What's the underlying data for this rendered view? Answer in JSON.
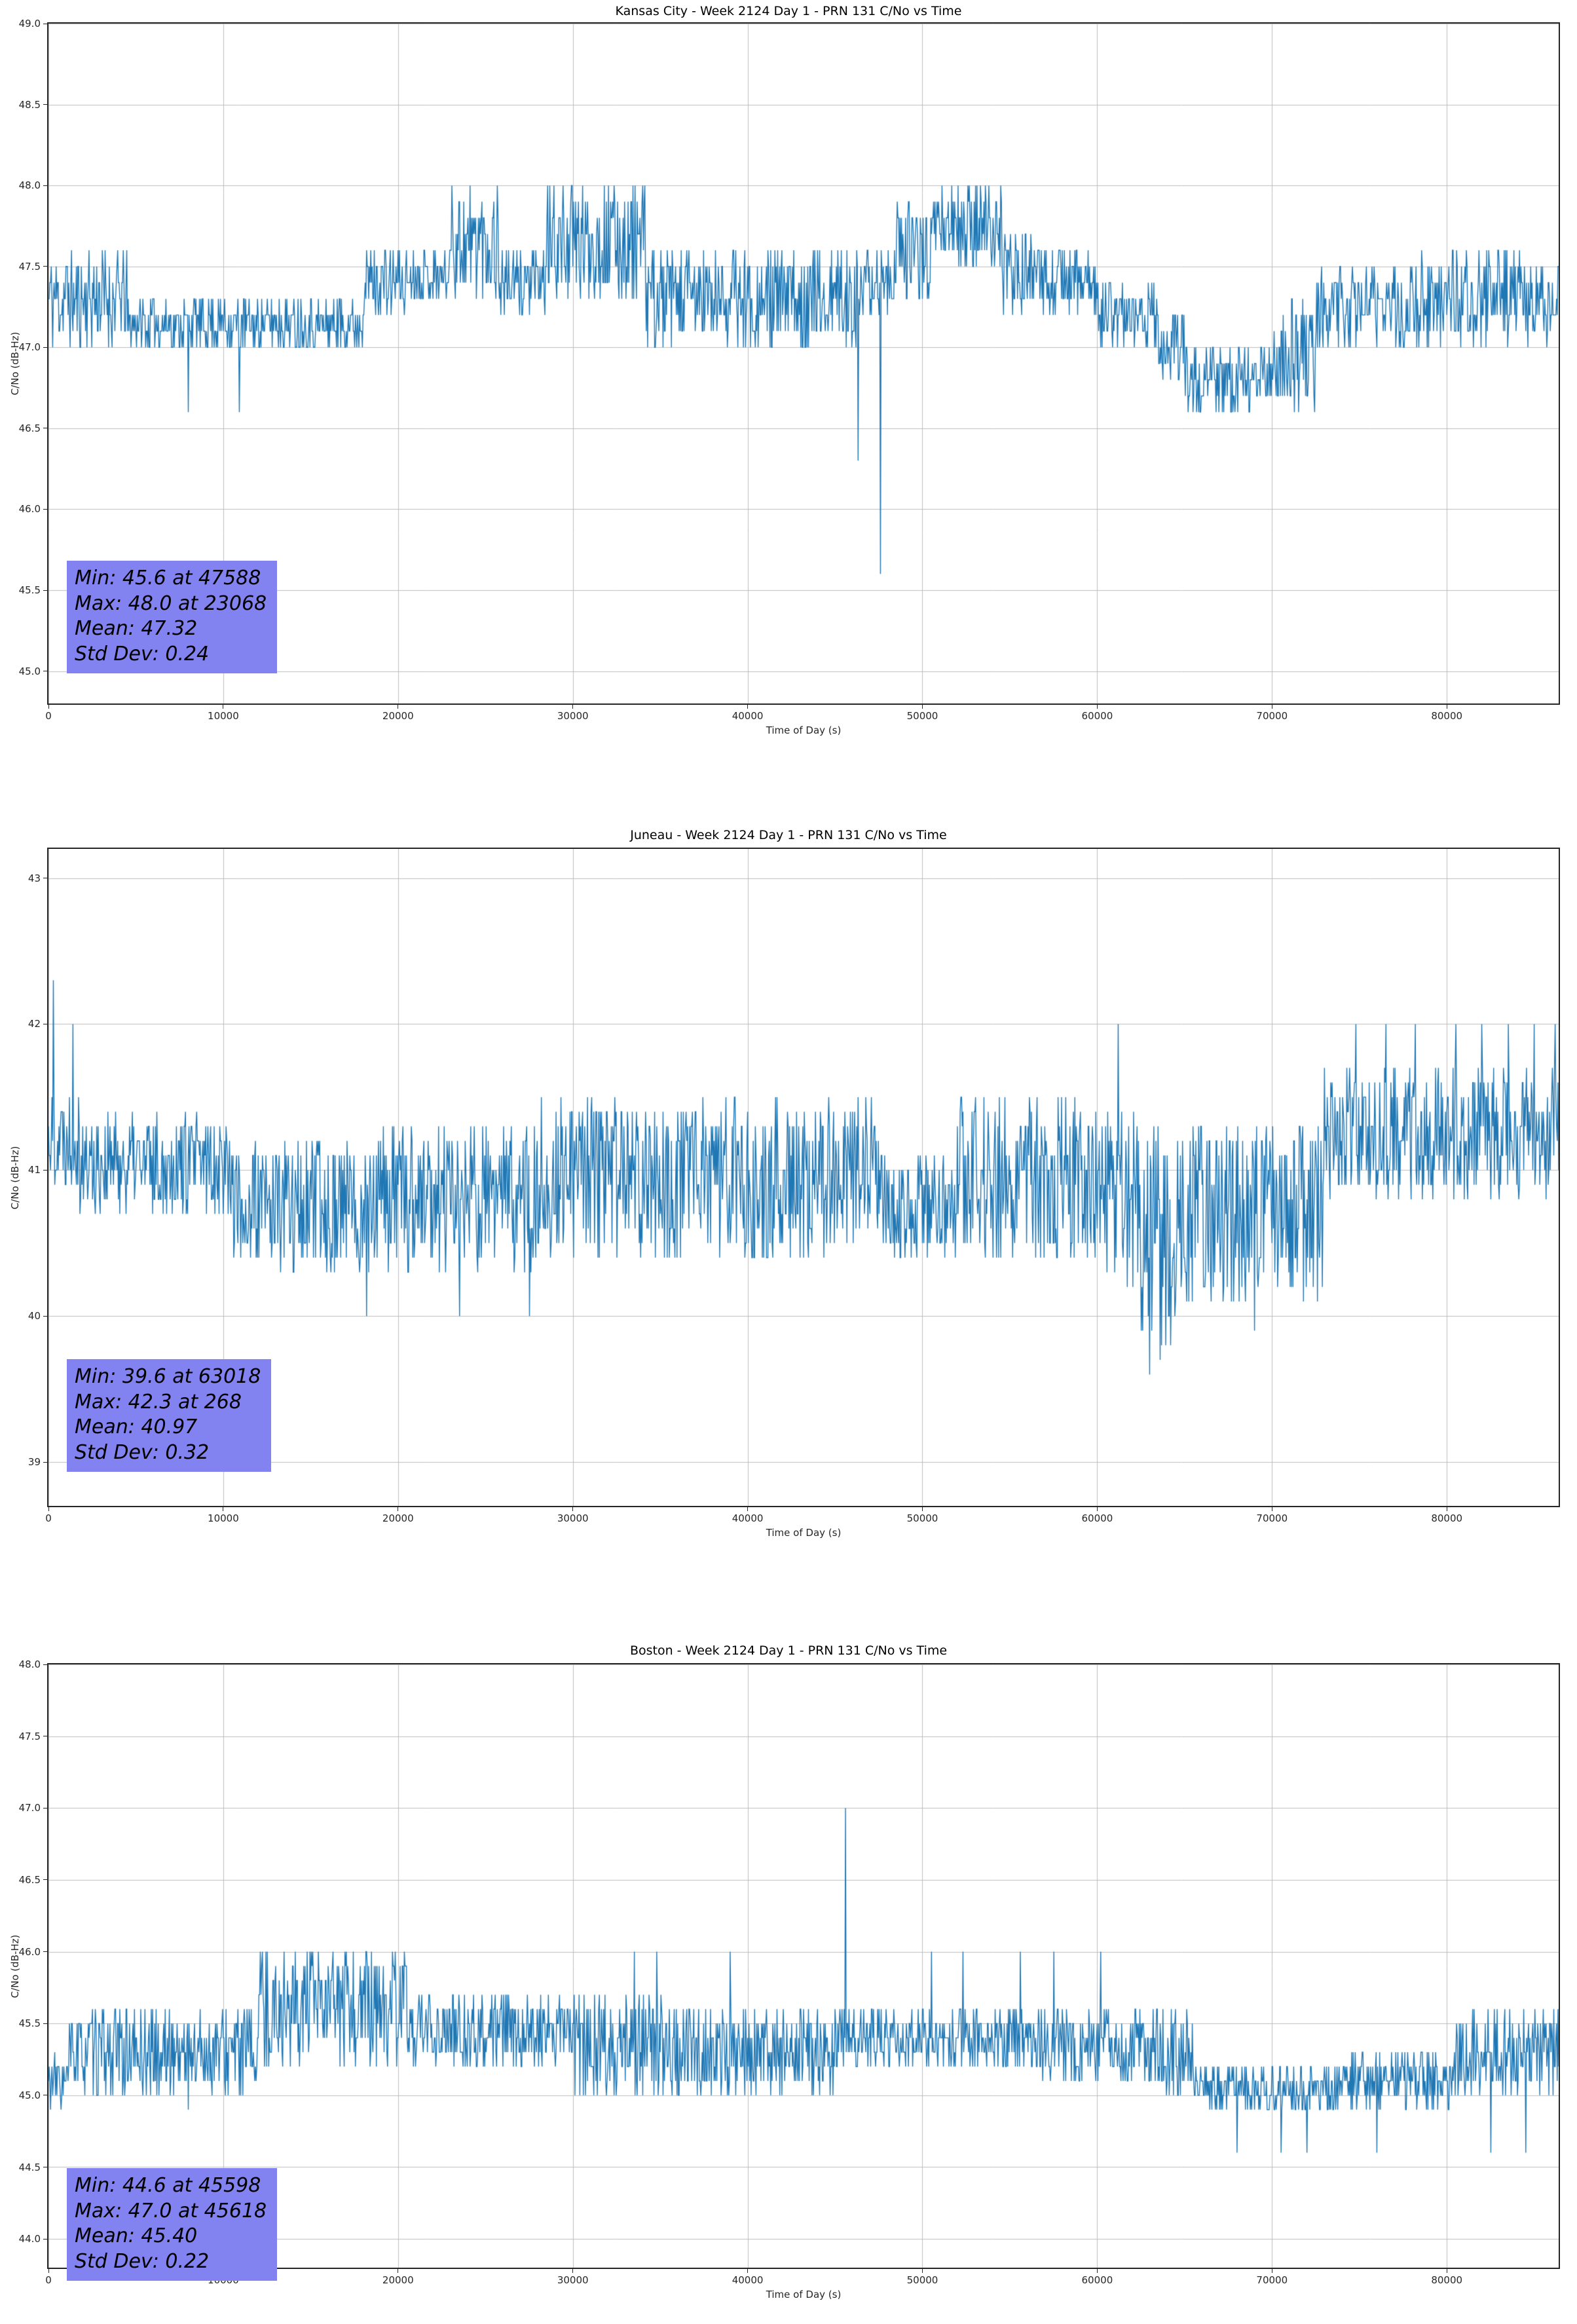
{
  "style": {
    "line_color": "#1f77b4",
    "grid_color": "#bdbdbd",
    "spine_color": "#262626",
    "annotation_bg": "#8282f0",
    "background": "#ffffff"
  },
  "chart_data": [
    {
      "type": "line",
      "title": "Kansas City - Week 2124 Day 1 - PRN 131 C/No vs Time",
      "xlabel": "Time of Day (s)",
      "ylabel": "C/No (dB-Hz)",
      "xlim": [
        0,
        86400
      ],
      "ylim": [
        44.8,
        49.0
      ],
      "xticks": [
        0,
        10000,
        20000,
        30000,
        40000,
        50000,
        60000,
        70000,
        80000
      ],
      "yticks": [
        45.0,
        45.5,
        46.0,
        46.5,
        47.0,
        47.5,
        48.0,
        48.5,
        49.0
      ],
      "ytick_decimals": 1,
      "grid": true,
      "seed": 11,
      "sample_dt": 40,
      "segments": [
        [
          0,
          4500,
          47.0,
          47.6
        ],
        [
          4500,
          18000,
          47.0,
          47.3
        ],
        [
          18000,
          20500,
          47.2,
          47.6
        ],
        [
          20500,
          23000,
          47.3,
          47.6
        ],
        [
          23000,
          25800,
          47.3,
          48.0
        ],
        [
          25800,
          28500,
          47.2,
          47.6
        ],
        [
          28500,
          34200,
          47.3,
          48.0
        ],
        [
          34200,
          41000,
          47.0,
          47.6
        ],
        [
          41000,
          47000,
          47.0,
          47.6
        ],
        [
          47000,
          48500,
          47.2,
          47.6
        ],
        [
          48500,
          50500,
          47.3,
          47.9
        ],
        [
          50500,
          54600,
          47.5,
          48.0
        ],
        [
          54600,
          56500,
          47.2,
          47.7
        ],
        [
          56500,
          60000,
          47.2,
          47.6
        ],
        [
          60000,
          63500,
          47.0,
          47.4
        ],
        [
          63500,
          65000,
          46.8,
          47.2
        ],
        [
          65000,
          70000,
          46.6,
          47.0
        ],
        [
          70000,
          72500,
          46.6,
          47.3
        ],
        [
          72500,
          78000,
          47.0,
          47.5
        ],
        [
          78000,
          86400,
          47.0,
          47.6
        ]
      ],
      "spikes": [
        [
          8000,
          46.6
        ],
        [
          10900,
          46.6
        ],
        [
          23068,
          48.0
        ],
        [
          46300,
          46.3
        ],
        [
          47588,
          45.6
        ]
      ],
      "stats": {
        "min": 45.6,
        "min_time": 47588,
        "max": 48.0,
        "max_time": 23068,
        "mean": 47.32,
        "std_dev": 0.24
      },
      "stats_lines": [
        "Min: 45.6 at 47588",
        "Max: 48.0 at 23068",
        "Mean: 47.32",
        "Std Dev: 0.24"
      ]
    },
    {
      "type": "line",
      "title": "Juneau - Week 2124 Day 1 - PRN 131 C/No vs Time",
      "xlabel": "Time of Day (s)",
      "ylabel": "C/No (dB-Hz)",
      "xlim": [
        0,
        86400
      ],
      "ylim": [
        38.7,
        43.2
      ],
      "xticks": [
        0,
        10000,
        20000,
        30000,
        40000,
        50000,
        60000,
        70000,
        80000
      ],
      "yticks": [
        39,
        40,
        41,
        42,
        43
      ],
      "ytick_decimals": 0,
      "grid": true,
      "seed": 22,
      "sample_dt": 40,
      "segments": [
        [
          0,
          1800,
          40.9,
          41.6
        ],
        [
          1800,
          10500,
          40.7,
          41.4
        ],
        [
          10500,
          17500,
          40.3,
          41.2
        ],
        [
          17500,
          28000,
          40.3,
          41.3
        ],
        [
          28000,
          47500,
          40.4,
          41.5
        ],
        [
          47500,
          52000,
          40.4,
          41.1
        ],
        [
          52000,
          60000,
          40.4,
          41.5
        ],
        [
          60000,
          62500,
          40.2,
          41.4
        ],
        [
          62500,
          64500,
          39.8,
          41.3
        ],
        [
          64500,
          66000,
          40.0,
          41.3
        ],
        [
          66000,
          73000,
          40.1,
          41.3
        ],
        [
          73000,
          86400,
          40.8,
          41.7
        ]
      ],
      "spikes": [
        [
          268,
          42.3
        ],
        [
          1400,
          42.0
        ],
        [
          18200,
          40.0
        ],
        [
          23500,
          40.0
        ],
        [
          27500,
          40.0
        ],
        [
          61200,
          42.0
        ],
        [
          63018,
          39.6
        ],
        [
          63600,
          39.7
        ],
        [
          64200,
          39.8
        ],
        [
          69000,
          39.9
        ],
        [
          74800,
          42.0
        ],
        [
          76500,
          42.0
        ],
        [
          78200,
          42.0
        ],
        [
          80500,
          42.0
        ],
        [
          82000,
          42.0
        ],
        [
          83500,
          42.0
        ],
        [
          85000,
          42.0
        ],
        [
          86200,
          42.0
        ]
      ],
      "stats": {
        "min": 39.6,
        "min_time": 63018,
        "max": 42.3,
        "max_time": 268,
        "mean": 40.97,
        "std_dev": 0.32
      },
      "stats_lines": [
        "Min: 39.6 at 63018",
        "Max: 42.3 at 268",
        "Mean: 40.97",
        "Std Dev: 0.32"
      ]
    },
    {
      "type": "line",
      "title": "Boston - Week 2124 Day 1 - PRN 131 C/No vs Time",
      "xlabel": "Time of Day (s)",
      "ylabel": "C/No (dB-Hz)",
      "xlim": [
        0,
        86400
      ],
      "ylim": [
        43.8,
        48.0
      ],
      "xticks": [
        0,
        10000,
        20000,
        30000,
        40000,
        50000,
        60000,
        70000,
        80000
      ],
      "yticks": [
        44.0,
        44.5,
        45.0,
        45.5,
        46.0,
        46.5,
        47.0,
        47.5,
        48.0
      ],
      "ytick_decimals": 1,
      "grid": true,
      "seed": 33,
      "sample_dt": 40,
      "segments": [
        [
          0,
          1200,
          44.9,
          45.3
        ],
        [
          1200,
          12000,
          45.0,
          45.6
        ],
        [
          12000,
          20500,
          45.2,
          46.0
        ],
        [
          20500,
          30000,
          45.2,
          45.7
        ],
        [
          30000,
          36000,
          45.0,
          45.7
        ],
        [
          36000,
          45000,
          45.0,
          45.6
        ],
        [
          45000,
          46000,
          45.2,
          45.6
        ],
        [
          46000,
          56500,
          45.2,
          45.6
        ],
        [
          56500,
          62000,
          45.1,
          45.6
        ],
        [
          62000,
          65500,
          45.0,
          45.6
        ],
        [
          65500,
          74500,
          44.9,
          45.2
        ],
        [
          74500,
          80500,
          44.9,
          45.3
        ],
        [
          80500,
          86400,
          45.0,
          45.6
        ]
      ],
      "spikes": [
        [
          8000,
          44.9
        ],
        [
          33500,
          46.0
        ],
        [
          34800,
          46.0
        ],
        [
          39000,
          46.0
        ],
        [
          45598,
          44.6
        ],
        [
          45618,
          47.0
        ],
        [
          50500,
          46.0
        ],
        [
          52300,
          46.0
        ],
        [
          55600,
          46.0
        ],
        [
          57500,
          46.0
        ],
        [
          60200,
          46.0
        ],
        [
          68000,
          44.6
        ],
        [
          70500,
          44.6
        ],
        [
          72000,
          44.6
        ],
        [
          76000,
          44.6
        ],
        [
          82500,
          44.6
        ],
        [
          84500,
          44.6
        ]
      ],
      "stats": {
        "min": 44.6,
        "min_time": 45598,
        "max": 47.0,
        "max_time": 45618,
        "mean": 45.4,
        "std_dev": 0.22
      },
      "stats_lines": [
        "Min: 44.6 at 45598",
        "Max: 47.0 at 45618",
        "Mean: 45.40",
        "Std Dev: 0.22"
      ]
    }
  ]
}
